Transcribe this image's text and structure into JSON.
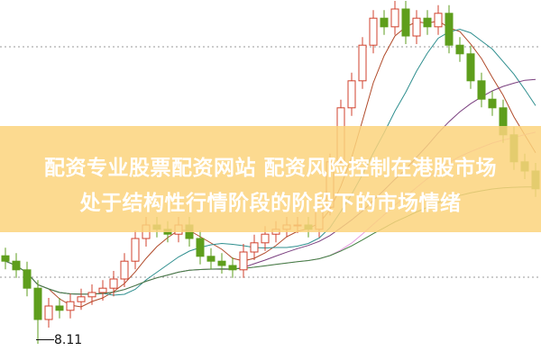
{
  "headline": {
    "line1": "配资专业股票配资网站 配资风险控制在港股市场",
    "line2": "处于结构性行情阶段的阶段下的市场情绪"
  },
  "chart_data": {
    "type": "candlestick",
    "title": "",
    "grid": "dotted horizontal",
    "low_annotation": "8.11",
    "closes": [
      9.64,
      9.48,
      9.14,
      8.56,
      8.81,
      8.73,
      8.89,
      8.98,
      9.06,
      9.14,
      9.31,
      9.64,
      10.06,
      10.31,
      10.23,
      10.14,
      10.31,
      10.06,
      9.73,
      9.64,
      9.56,
      9.48,
      9.81,
      9.98,
      10.14,
      10.23,
      10.31,
      10.31,
      10.23,
      10.64,
      11.48,
      12.48,
      12.98,
      13.64,
      14.14,
      13.98,
      14.31,
      13.81,
      14.14,
      13.98,
      14.23,
      13.64,
      13.48,
      12.98,
      12.64,
      12.48,
      11.98,
      11.48,
      11.31,
      10.98
    ],
    "low": 8.11,
    "moving_averages": [
      5,
      10,
      20,
      30,
      60
    ],
    "colors": {
      "up": "#d0412c",
      "down": "#5e9e1c",
      "ma": [
        "#b04a2a",
        "#2f8f8f",
        "#7a3f7f",
        "#e59be0",
        "#3f7f3f"
      ],
      "banner": "#fcd47d"
    }
  }
}
